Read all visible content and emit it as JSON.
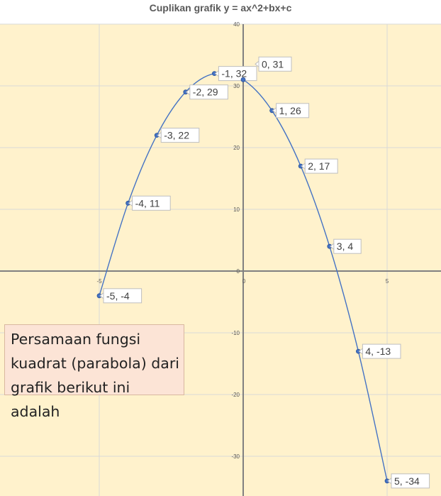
{
  "chart_data": {
    "type": "scatter",
    "title": "Cuplikan grafik y = ax^2+bx+c",
    "xlabel": "",
    "ylabel": "",
    "xlim": [
      -8.5,
      6.9
    ],
    "ylim": [
      -36,
      40
    ],
    "x_ticks": [
      -5,
      0,
      5
    ],
    "y_ticks": [
      40,
      30,
      20,
      10,
      0,
      -10,
      -20,
      -30
    ],
    "grid": true,
    "smooth_line": true,
    "series": [
      {
        "points": [
          {
            "x": -5,
            "y": -4,
            "label": "-5, -4"
          },
          {
            "x": -4,
            "y": 11,
            "label": "-4, 11"
          },
          {
            "x": -3,
            "y": 22,
            "label": "-3, 22"
          },
          {
            "x": -2,
            "y": 29,
            "label": "-2, 29"
          },
          {
            "x": -1,
            "y": 32,
            "label": "-1, 32"
          },
          {
            "x": 0,
            "y": 31,
            "label": "0, 31"
          },
          {
            "x": 1,
            "y": 26,
            "label": "1, 26"
          },
          {
            "x": 2,
            "y": 17,
            "label": "2, 17"
          },
          {
            "x": 3,
            "y": 4,
            "label": "3, 4"
          },
          {
            "x": 4,
            "y": -13,
            "label": "4, -13"
          },
          {
            "x": 5,
            "y": -34,
            "label": "5, -34"
          }
        ]
      }
    ],
    "colors": {
      "plot_background": "#fff2cc",
      "gridline": "#d9d9d9",
      "axis": "#808080",
      "series_line": "#4472c4",
      "marker": "#4472c4"
    }
  },
  "question": {
    "text": "Persamaan fungsi kuadrat (parabola) dari grafik berikut ini adalah",
    "background": "#fce4d6"
  }
}
